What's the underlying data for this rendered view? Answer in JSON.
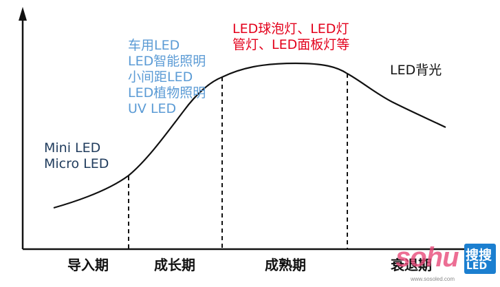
{
  "stages": [
    "导入期",
    "成长期",
    "成熟期",
    "衰退期"
  ],
  "annotations": {
    "intro": {
      "lines": [
        "Mini LED",
        "Micro LED"
      ],
      "color": "#1f3b5c"
    },
    "growth": {
      "lines": [
        "车用LED",
        "LED智能照明",
        "小间距LED",
        "LED植物照明",
        "UV LED"
      ],
      "color": "#5b9bd5"
    },
    "mature": {
      "lines": [
        "LED球泡灯、LED灯",
        "管灯、LED面板灯等"
      ],
      "color": "#e3001b"
    },
    "decline": {
      "lines": [
        "LED背光"
      ],
      "color": "#111111"
    }
  },
  "watermark": {
    "logo": "sohu",
    "brand_top": "搜搜",
    "brand_bottom": "LED网",
    "url": "www.sosoled.com"
  }
}
